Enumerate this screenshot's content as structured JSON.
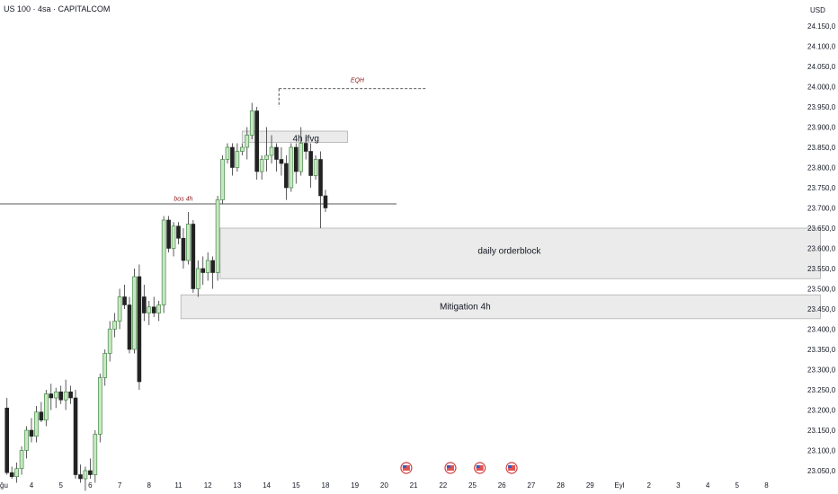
{
  "header": {
    "title": "US 100 · 4sa · CAPITALCOM",
    "currency": "USD"
  },
  "colors": {
    "up_body": "#c9e7c4",
    "up_border": "#2f7a2f",
    "down_body": "#222222",
    "wick": "#333333",
    "zone_fill": "#ebebeb",
    "zone_stroke": "#b0b0b0",
    "annotation": "#8b1a1a"
  },
  "chart_data": {
    "type": "candlestick",
    "y_axis": {
      "min": 23040,
      "max": 24190,
      "ticks": [
        24150,
        24100,
        24050,
        24000,
        23950,
        23900,
        23850,
        23800,
        23750,
        23700,
        23650,
        23600,
        23550,
        23500,
        23450,
        23400,
        23350,
        23300,
        23250,
        23200,
        23150,
        23100,
        23050
      ],
      "tick_labels": [
        "24.150,0",
        "24.100,0",
        "24.050,0",
        "24.000,0",
        "23.950,0",
        "23.900,0",
        "23.850,0",
        "23.800,0",
        "23.750,0",
        "23.700,0",
        "23.650,0",
        "23.600,0",
        "23.550,0",
        "23.500,0",
        "23.450,0",
        "23.400,0",
        "23.350,0",
        "23.300,0",
        "23.250,0",
        "23.200,0",
        "23.150,0",
        "23.100,0",
        "23.050,0"
      ]
    },
    "x_axis": {
      "labels": [
        "ağu",
        "4",
        "5",
        "6",
        "7",
        "8",
        "11",
        "12",
        "13",
        "14",
        "15",
        "18",
        "19",
        "20",
        "21",
        "22",
        "25",
        "26",
        "27",
        "28",
        "29",
        "Eyl",
        "2",
        "3",
        "4",
        "5",
        "8"
      ],
      "label_bar_index": [
        -0.5,
        5.5,
        11.5,
        17.5,
        23.5,
        29.5,
        35.5,
        41.5,
        47.5,
        53.5,
        59.5,
        65.5,
        71.5,
        77.5,
        83.5,
        89.5,
        95.5,
        101.5,
        107.5,
        113.5,
        119.5,
        125.5,
        131.5,
        137.5,
        143.5,
        149.5,
        155.5
      ]
    },
    "candles": [
      [
        23205,
        23230,
        23040,
        23045
      ],
      [
        23045,
        23060,
        23030,
        23035
      ],
      [
        23035,
        23070,
        23020,
        23055
      ],
      [
        23055,
        23110,
        23040,
        23100
      ],
      [
        23100,
        23160,
        23080,
        23150
      ],
      [
        23150,
        23180,
        23120,
        23135
      ],
      [
        23135,
        23210,
        23120,
        23195
      ],
      [
        23195,
        23220,
        23170,
        23175
      ],
      [
        23175,
        23250,
        23160,
        23240
      ],
      [
        23240,
        23265,
        23200,
        23230
      ],
      [
        23230,
        23255,
        23205,
        23245
      ],
      [
        23245,
        23260,
        23215,
        23225
      ],
      [
        23225,
        23275,
        23200,
        23245
      ],
      [
        23245,
        23260,
        23215,
        23230
      ],
      [
        23230,
        23250,
        23030,
        23040
      ],
      [
        23040,
        23065,
        23020,
        23030
      ],
      [
        23030,
        23060,
        23000,
        23050
      ],
      [
        23050,
        23080,
        23030,
        23040
      ],
      [
        23040,
        23150,
        23020,
        23140
      ],
      [
        23140,
        23290,
        23120,
        23280
      ],
      [
        23280,
        23350,
        23260,
        23340
      ],
      [
        23340,
        23420,
        23320,
        23400
      ],
      [
        23400,
        23440,
        23380,
        23420
      ],
      [
        23420,
        23500,
        23400,
        23480
      ],
      [
        23480,
        23510,
        23450,
        23460
      ],
      [
        23460,
        23480,
        23340,
        23350
      ],
      [
        23350,
        23550,
        23340,
        23530
      ],
      [
        23530,
        23560,
        23250,
        23270
      ],
      [
        23480,
        23510,
        23420,
        23440
      ],
      [
        23440,
        23470,
        23410,
        23455
      ],
      [
        23455,
        23480,
        23430,
        23440
      ],
      [
        23440,
        23470,
        23420,
        23460
      ],
      [
        23460,
        23680,
        23440,
        23670
      ],
      [
        23670,
        23680,
        23590,
        23600
      ],
      [
        23600,
        23665,
        23580,
        23655
      ],
      [
        23655,
        23665,
        23610,
        23625
      ],
      [
        23625,
        23650,
        23550,
        23570
      ],
      [
        23570,
        23690,
        23560,
        23660
      ],
      [
        23660,
        23670,
        23490,
        23500
      ],
      [
        23500,
        23570,
        23480,
        23550
      ],
      [
        23550,
        23580,
        23510,
        23540
      ],
      [
        23540,
        23590,
        23520,
        23570
      ],
      [
        23570,
        23580,
        23500,
        23540
      ],
      [
        23540,
        23730,
        23520,
        23720
      ],
      [
        23720,
        23830,
        23710,
        23820
      ],
      [
        23820,
        23860,
        23810,
        23850
      ],
      [
        23850,
        23860,
        23780,
        23800
      ],
      [
        23800,
        23860,
        23790,
        23840
      ],
      [
        23840,
        23860,
        23830,
        23850
      ],
      [
        23850,
        23900,
        23820,
        23880
      ],
      [
        23880,
        23960,
        23870,
        23940
      ],
      [
        23940,
        23950,
        23770,
        23790
      ],
      [
        23790,
        23830,
        23770,
        23820
      ],
      [
        23820,
        23900,
        23790,
        23830
      ],
      [
        23830,
        23880,
        23810,
        23850
      ],
      [
        23850,
        23860,
        23790,
        23820
      ],
      [
        23820,
        23850,
        23780,
        23810
      ],
      [
        23810,
        23830,
        23720,
        23750
      ],
      [
        23750,
        23860,
        23740,
        23850
      ],
      [
        23850,
        23860,
        23760,
        23790
      ],
      [
        23790,
        23900,
        23780,
        23860
      ],
      [
        23860,
        23880,
        23820,
        23840
      ],
      [
        23840,
        23860,
        23750,
        23780
      ],
      [
        23780,
        23830,
        23770,
        23820
      ],
      [
        23820,
        23840,
        23650,
        23730
      ],
      [
        23730,
        23745,
        23690,
        23700
      ]
    ],
    "annotations": [
      {
        "name": "eqh-label",
        "text": "EQH",
        "price": 24015,
        "bar": 72
      },
      {
        "name": "ifvg-label",
        "text": "4h ifvg",
        "price": 23870,
        "bar": 61.5
      },
      {
        "name": "bos-label",
        "text": "bos 4h",
        "price": 23722,
        "bar": 36.5
      },
      {
        "name": "orderblock-label",
        "text": "daily orderblock",
        "price": 23592,
        "bar": 103
      },
      {
        "name": "mitigation-label",
        "text": "Mitigation 4h",
        "price": 23455,
        "bar": 94
      }
    ],
    "zones": [
      {
        "name": "ifvg-zone",
        "top": 23890,
        "bottom": 23862,
        "from_bar": 48.5,
        "to_bar": 70
      },
      {
        "name": "daily-orderblock-zone",
        "top": 23650,
        "bottom": 23525,
        "from_bar": 44,
        "to_bar": 166.5
      },
      {
        "name": "mitigation-zone",
        "top": 23485,
        "bottom": 23426,
        "from_bar": 36,
        "to_bar": 166.5
      }
    ],
    "lines": [
      {
        "name": "bos-line",
        "price": 23710,
        "from_bar": -1,
        "to_bar": 80,
        "dashed": false
      },
      {
        "name": "eqh-line",
        "price": 23995,
        "from_bar": 56,
        "to_bar": 86,
        "dashed": true
      }
    ],
    "event_markers_bar": [
      82,
      91,
      97,
      103.5
    ]
  }
}
